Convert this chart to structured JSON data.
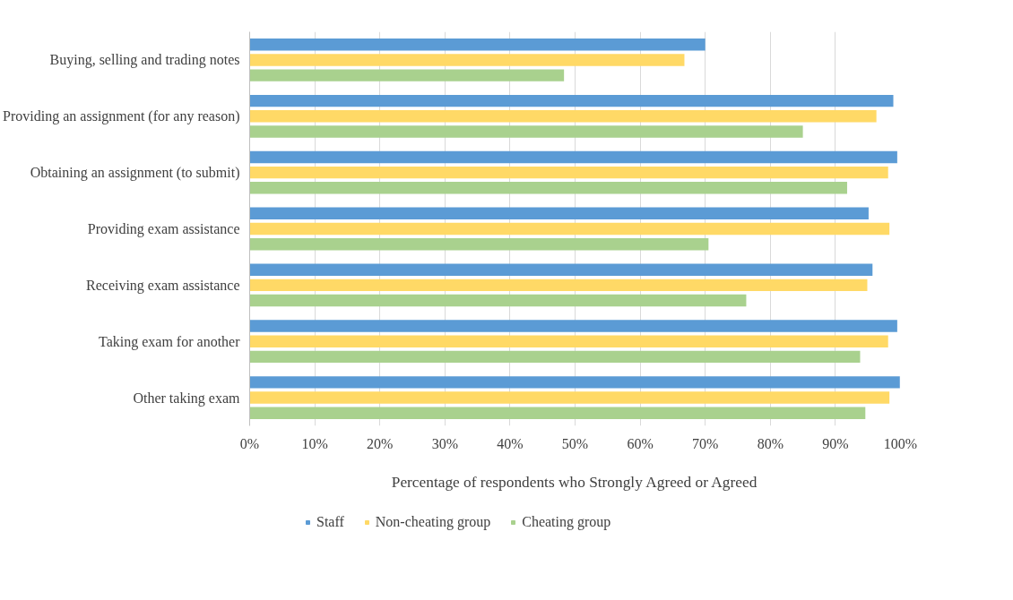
{
  "chart_data": {
    "type": "bar",
    "orientation": "horizontal",
    "categories": [
      "Buying, selling and trading notes",
      "Providing an assignment (for any reason)",
      "Obtaining an assignment (to submit)",
      "Providing exam assistance",
      "Receiving exam assistance",
      "Taking exam for another",
      "Other taking exam"
    ],
    "series": [
      {
        "name": "Staff",
        "color": "#5b9bd5",
        "values": [
          70,
          98.9,
          99.5,
          95.1,
          95.7,
          99.5,
          99.9
        ]
      },
      {
        "name": "Non-cheating group",
        "color": "#ffd966",
        "values": [
          66.8,
          96.3,
          98.1,
          98.3,
          94.9,
          98.1,
          98.3
        ]
      },
      {
        "name": "Cheating group",
        "color": "#a9d18e",
        "values": [
          48.3,
          85.0,
          91.8,
          70.5,
          76.3,
          93.8,
          94.6
        ]
      }
    ],
    "xlim": [
      0,
      100
    ],
    "xticks": [
      {
        "value": 0,
        "label": "0%"
      },
      {
        "value": 10,
        "label": "10%"
      },
      {
        "value": 20,
        "label": "20%"
      },
      {
        "value": 30,
        "label": "30%"
      },
      {
        "value": 40,
        "label": "40%"
      },
      {
        "value": 50,
        "label": "50%"
      },
      {
        "value": 60,
        "label": "60%"
      },
      {
        "value": 70,
        "label": "70%"
      },
      {
        "value": 80,
        "label": "80%"
      },
      {
        "value": 90,
        "label": "90%"
      },
      {
        "value": 100,
        "label": "100%"
      }
    ],
    "xlabel": "Percentage of respondents who Strongly Agreed or Agreed",
    "grid": "x",
    "legend": "bottom"
  }
}
